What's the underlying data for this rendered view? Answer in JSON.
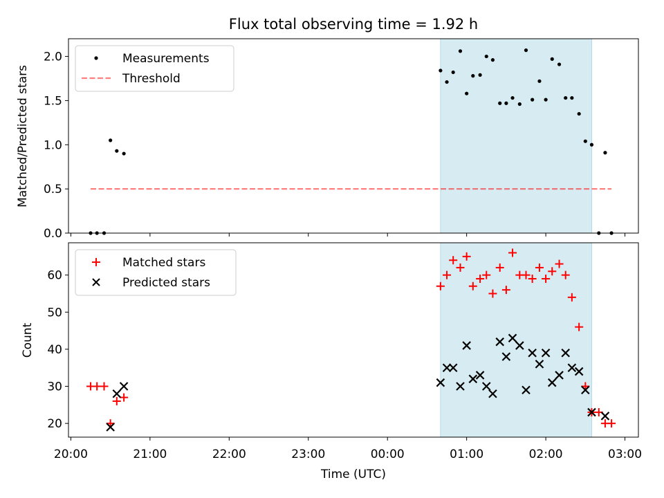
{
  "figure": {
    "title": "Flux total observing time = 1.92 h",
    "xlabel": "Time (UTC)",
    "xticks": [
      "20:00",
      "21:00",
      "22:00",
      "23:00",
      "00:00",
      "01:00",
      "02:00",
      "03:00"
    ]
  },
  "colors": {
    "span": "#add8e6",
    "threshold": "#ff0000",
    "matched": "#ff0000",
    "predicted": "#000000",
    "measurement": "#000000"
  },
  "chart_data": [
    {
      "type": "scatter",
      "panel": "top",
      "ylabel": "Matched/Predicted stars",
      "x_unit": "hours after 20:00 UTC",
      "xlim": [
        -0.03,
        7.17
      ],
      "ylim": [
        0,
        2.2
      ],
      "yticks": [
        "0.0",
        "0.5",
        "1.0",
        "1.5",
        "2.0"
      ],
      "grid": false,
      "legend_position": "upper-left",
      "shaded_span": [
        4.67,
        6.58
      ],
      "series": [
        {
          "name": "Measurements",
          "x": [
            0.25,
            0.33,
            0.42,
            0.5,
            0.58,
            0.67,
            4.67,
            4.75,
            4.83,
            4.92,
            5.0,
            5.08,
            5.17,
            5.25,
            5.33,
            5.42,
            5.5,
            5.58,
            5.67,
            5.75,
            5.83,
            5.92,
            6.0,
            6.08,
            6.17,
            6.25,
            6.33,
            6.42,
            6.5,
            6.58,
            6.67,
            6.75,
            6.83
          ],
          "y": [
            0.0,
            0.0,
            0.0,
            1.05,
            0.93,
            0.9,
            1.84,
            1.71,
            1.82,
            2.06,
            1.58,
            1.78,
            1.79,
            2.0,
            1.96,
            1.47,
            1.47,
            1.53,
            1.46,
            2.07,
            1.51,
            1.72,
            1.51,
            1.97,
            1.91,
            1.53,
            1.53,
            1.35,
            1.04,
            1.0,
            0.0,
            0.91,
            0.0
          ]
        },
        {
          "name": "Threshold",
          "style": "dashed",
          "x": [
            0.25,
            6.83
          ],
          "y": [
            0.5,
            0.5
          ]
        }
      ]
    },
    {
      "type": "scatter",
      "panel": "bottom",
      "ylabel": "Count",
      "x_unit": "hours after 20:00 UTC",
      "xlim": [
        -0.03,
        7.17
      ],
      "ylim": [
        16.3,
        68.7
      ],
      "yticks": [
        "20",
        "30",
        "40",
        "50",
        "60"
      ],
      "grid": false,
      "legend_position": "upper-left",
      "shaded_span": [
        4.67,
        6.58
      ],
      "series": [
        {
          "name": "Matched stars",
          "marker": "+",
          "x": [
            0.25,
            0.33,
            0.42,
            0.5,
            0.58,
            0.67,
            4.67,
            4.75,
            4.83,
            4.92,
            5.0,
            5.08,
            5.17,
            5.25,
            5.33,
            5.42,
            5.5,
            5.58,
            5.67,
            5.75,
            5.83,
            5.92,
            6.0,
            6.08,
            6.17,
            6.25,
            6.33,
            6.42,
            6.5,
            6.58,
            6.67,
            6.75,
            6.83
          ],
          "y": [
            30,
            30,
            30,
            20,
            26,
            27,
            57,
            60,
            64,
            62,
            65,
            57,
            59,
            60,
            55,
            62,
            56,
            66,
            60,
            60,
            59,
            62,
            59,
            61,
            63,
            60,
            54,
            46,
            30,
            23,
            23,
            20,
            20
          ]
        },
        {
          "name": "Predicted stars",
          "marker": "x",
          "x": [
            0.5,
            0.58,
            0.67,
            4.67,
            4.75,
            4.83,
            4.92,
            5.0,
            5.08,
            5.17,
            5.25,
            5.33,
            5.42,
            5.5,
            5.58,
            5.67,
            5.75,
            5.83,
            5.92,
            6.0,
            6.08,
            6.17,
            6.25,
            6.33,
            6.42,
            6.5,
            6.58,
            6.75
          ],
          "y": [
            19,
            28,
            30,
            31,
            35,
            35,
            30,
            41,
            32,
            33,
            30,
            28,
            42,
            38,
            43,
            41,
            29,
            39,
            36,
            39,
            31,
            33,
            39,
            35,
            34,
            29,
            23,
            22
          ]
        }
      ]
    }
  ]
}
